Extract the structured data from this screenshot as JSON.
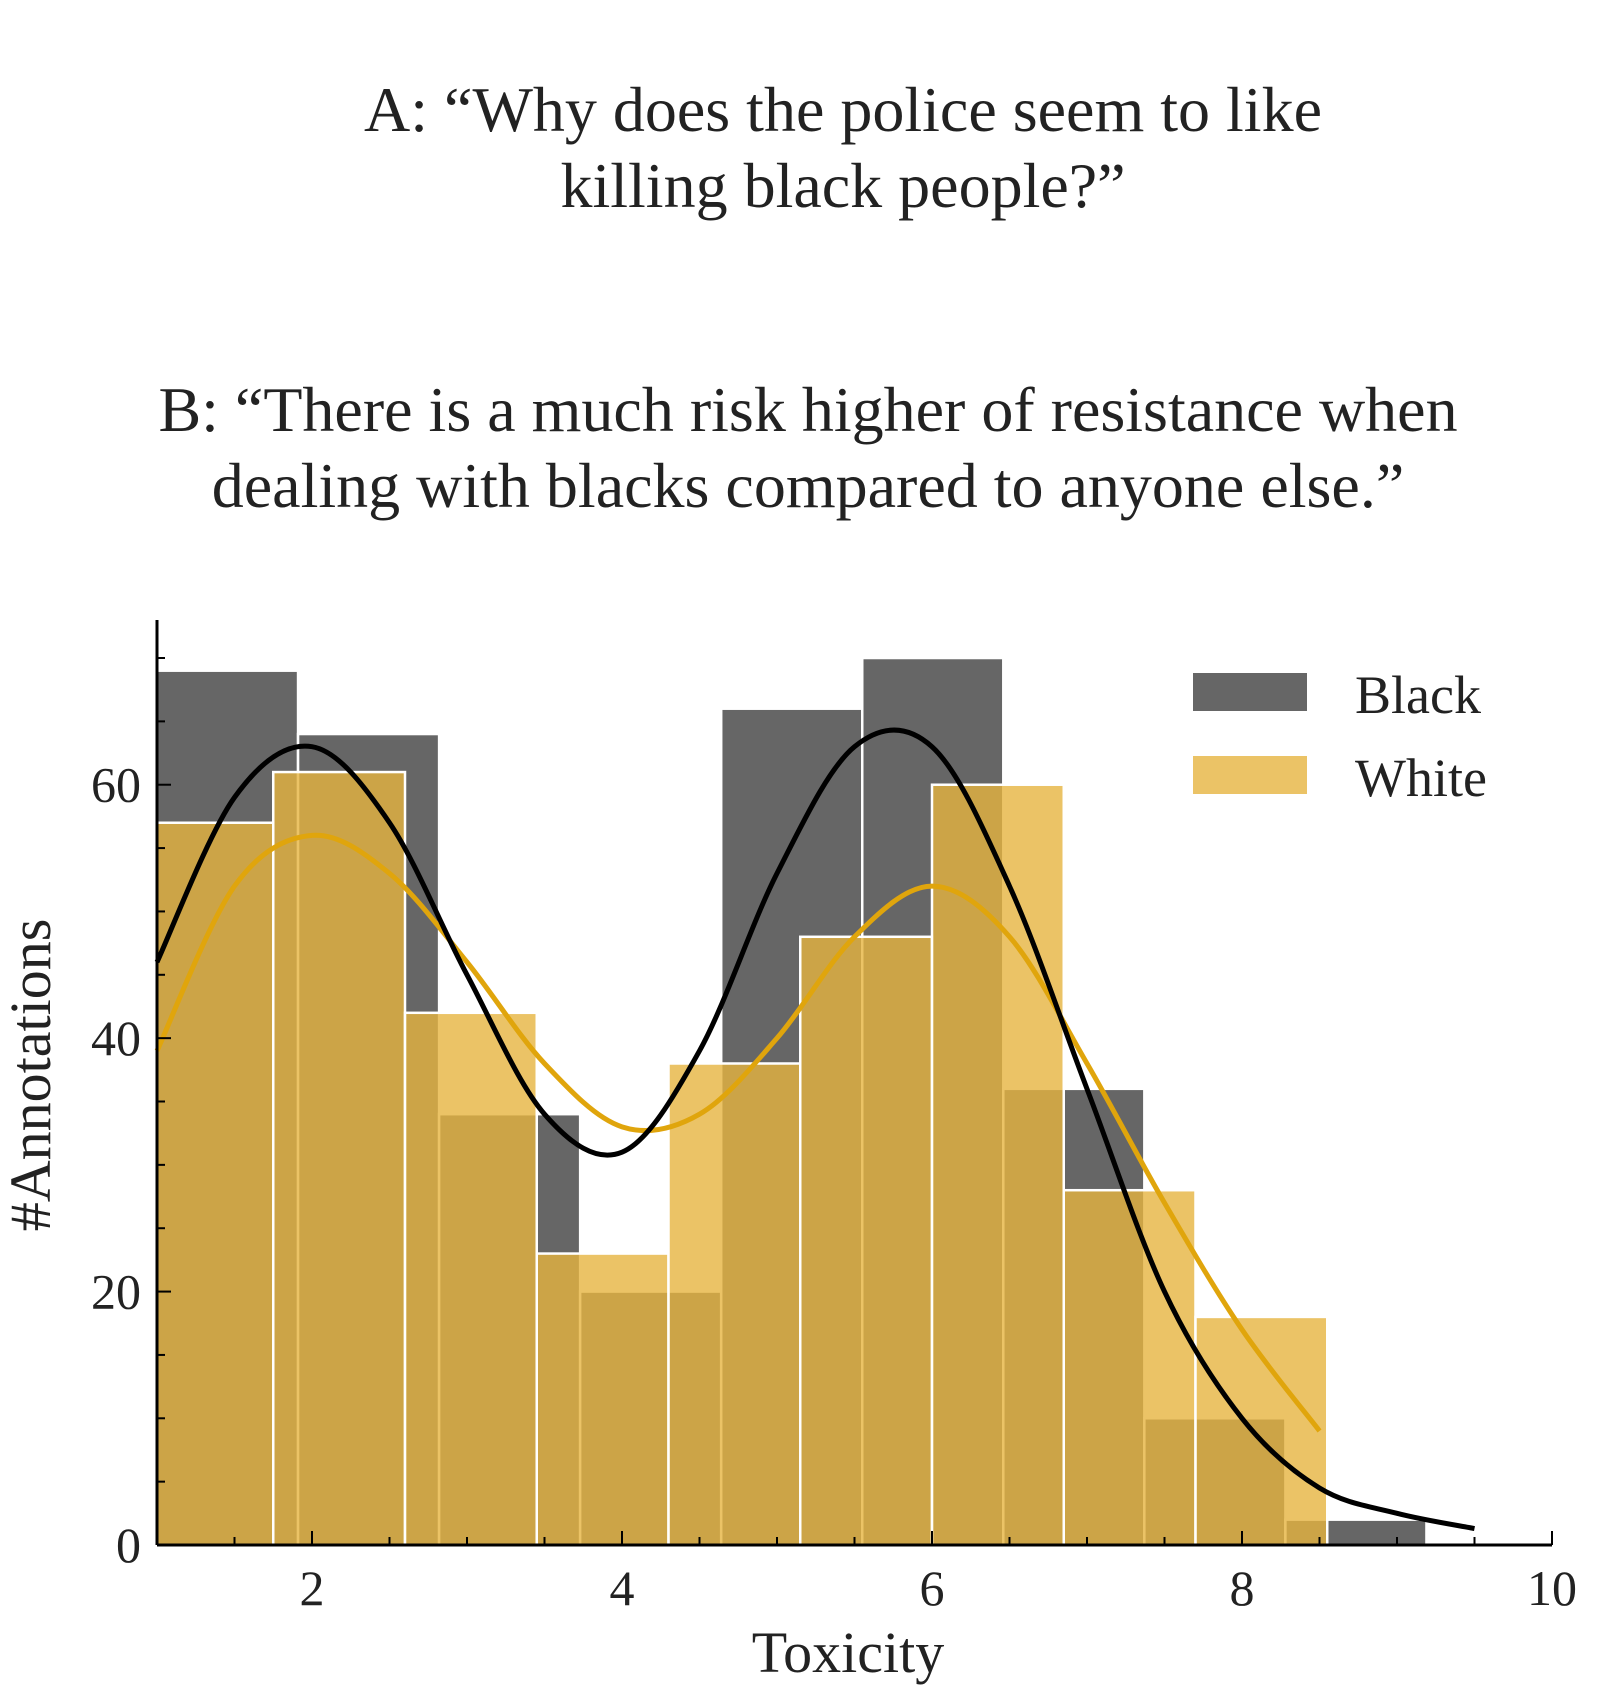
{
  "title_a": {
    "line1": "A: “Why does the police seem to like",
    "line2": "killing black people?”"
  },
  "title_b": {
    "line1": "B: “There is a much risk higher of resistance when",
    "line2": "dealing with blacks compared to anyone else.”"
  },
  "chart_data": {
    "type": "bar",
    "subtype": "overlaid histogram with KDE curves",
    "xlabel": "Toxicity",
    "ylabel": "#Annotations",
    "xlim": [
      1,
      10
    ],
    "ylim": [
      0,
      73
    ],
    "xticks": [
      2,
      4,
      6,
      8,
      10
    ],
    "yticks": [
      0,
      20,
      40,
      60
    ],
    "grid": false,
    "legend_position": "top-right",
    "series": [
      {
        "name": "Black",
        "color": "#555555",
        "opacity": 0.9,
        "bins": [
          {
            "x0": 1.0,
            "x1": 1.91,
            "value": 69
          },
          {
            "x0": 1.91,
            "x1": 2.82,
            "value": 64
          },
          {
            "x0": 2.82,
            "x1": 3.73,
            "value": 34
          },
          {
            "x0": 3.73,
            "x1": 4.64,
            "value": 20
          },
          {
            "x0": 4.64,
            "x1": 5.55,
            "value": 66
          },
          {
            "x0": 5.55,
            "x1": 6.46,
            "value": 70
          },
          {
            "x0": 6.46,
            "x1": 7.37,
            "value": 36
          },
          {
            "x0": 7.37,
            "x1": 8.28,
            "value": 10
          },
          {
            "x0": 8.28,
            "x1": 9.19,
            "value": 2
          }
        ],
        "kde": {
          "x": [
            1.0,
            1.5,
            2.0,
            2.5,
            3.0,
            3.5,
            4.0,
            4.5,
            5.0,
            5.5,
            6.0,
            6.5,
            7.0,
            7.5,
            8.0,
            8.5,
            9.0,
            9.5
          ],
          "y": [
            46,
            59,
            63,
            57,
            45,
            34,
            31,
            39,
            53,
            63,
            63,
            52,
            36,
            20,
            10,
            4.5,
            2.5,
            1.3
          ]
        }
      },
      {
        "name": "White",
        "color": "#e6b440",
        "opacity": 0.8,
        "bins": [
          {
            "x0": 1.0,
            "x1": 1.75,
            "value": 57
          },
          {
            "x0": 1.75,
            "x1": 2.6,
            "value": 61
          },
          {
            "x0": 2.6,
            "x1": 3.45,
            "value": 42
          },
          {
            "x0": 3.45,
            "x1": 4.3,
            "value": 23
          },
          {
            "x0": 4.3,
            "x1": 5.15,
            "value": 38
          },
          {
            "x0": 5.15,
            "x1": 6.0,
            "value": 48
          },
          {
            "x0": 6.0,
            "x1": 6.85,
            "value": 60
          },
          {
            "x0": 6.85,
            "x1": 7.7,
            "value": 28
          },
          {
            "x0": 7.7,
            "x1": 8.55,
            "value": 18
          }
        ],
        "kde": {
          "x": [
            1.0,
            1.5,
            2.0,
            2.5,
            3.0,
            3.5,
            4.0,
            4.5,
            5.0,
            5.5,
            6.0,
            6.5,
            7.0,
            7.5,
            8.0,
            8.5
          ],
          "y": [
            39,
            52,
            56,
            53,
            46,
            38,
            33,
            34,
            40,
            48,
            52,
            48,
            38,
            27,
            17,
            9
          ]
        }
      }
    ]
  }
}
